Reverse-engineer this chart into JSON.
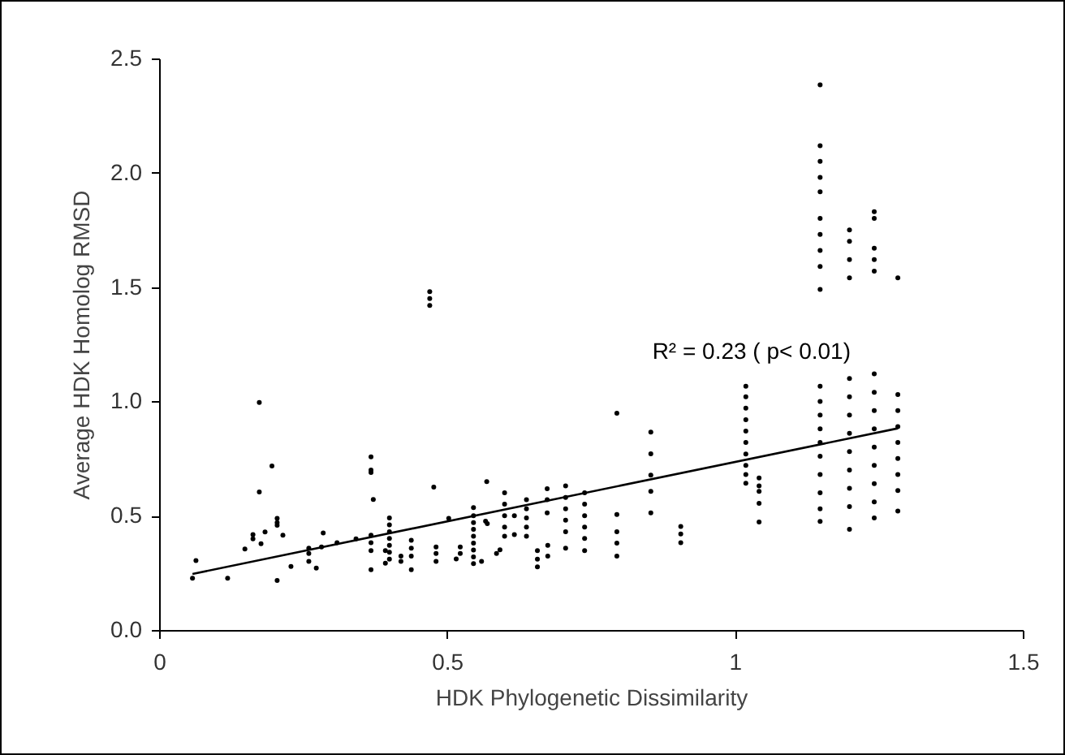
{
  "chart_data": {
    "type": "scatter",
    "xlabel": "HDK Phylogenetic Dissimilarity",
    "ylabel": "Average HDK Homolog RMSD",
    "annotations": [
      "R² = 0.23 ( p< 0.01)"
    ],
    "xlim": [
      0,
      1.5
    ],
    "xticks": [
      0,
      0.5,
      1,
      1.5
    ],
    "ylim": [
      0,
      2.5
    ],
    "yticks": [
      {
        "value": 0,
        "label": "0.0"
      },
      {
        "value": 0.5,
        "label": "0.5"
      },
      {
        "value": 1,
        "label": "1.0"
      },
      {
        "value": 1.5,
        "label": "1.5"
      },
      {
        "value": 2,
        "label": "2.0"
      },
      {
        "value": 2.5,
        "label": "2.5"
      }
    ],
    "grid": false,
    "series": [
      {
        "color": "#000000",
        "marker": "circle",
        "x": [
          0.058,
          0.064,
          0.119,
          0.149,
          0.163,
          0.163,
          0.174,
          0.174,
          0.177,
          0.184,
          0.196,
          0.205,
          0.205,
          0.205,
          0.205,
          0.215,
          0.229,
          0.26,
          0.26,
          0.26,
          0.273,
          0.285,
          0.282,
          0.309,
          0.342,
          0.368,
          0.368,
          0.368,
          0.372,
          0.368,
          0.368,
          0.368,
          0.368,
          0.393,
          0.393,
          0.4,
          0.4,
          0.4,
          0.4,
          0.4,
          0.4,
          0.4,
          0.42,
          0.42,
          0.438,
          0.438,
          0.438,
          0.438,
          0.47,
          0.47,
          0.47,
          0.477,
          0.481,
          0.481,
          0.481,
          0.503,
          0.516,
          0.523,
          0.523,
          0.546,
          0.546,
          0.546,
          0.546,
          0.546,
          0.546,
          0.546,
          0.546,
          0.546,
          0.56,
          0.567,
          0.569,
          0.57,
          0.586,
          0.592,
          0.6,
          0.6,
          0.6,
          0.6,
          0.6,
          0.617,
          0.617,
          0.638,
          0.638,
          0.638,
          0.638,
          0.638,
          0.657,
          0.657,
          0.657,
          0.675,
          0.675,
          0.674,
          0.674,
          0.674,
          0.706,
          0.706,
          0.706,
          0.706,
          0.706,
          0.706,
          0.739,
          0.739,
          0.739,
          0.739,
          0.739,
          0.739,
          0.795,
          0.795,
          0.795,
          0.795,
          0.795,
          0.854,
          0.854,
          0.854,
          0.854,
          0.854,
          0.906,
          0.906,
          0.906,
          1.019,
          1.019,
          1.019,
          1.019,
          1.019,
          1.019,
          1.019,
          1.019,
          1.019,
          1.019,
          1.042,
          1.042,
          1.042,
          1.042,
          1.042,
          1.148,
          1.148,
          1.148,
          1.148,
          1.148,
          1.148,
          1.148,
          1.148,
          1.148,
          1.148,
          1.148,
          1.148,
          1.148,
          1.148,
          1.148,
          1.148,
          1.148,
          1.148,
          1.148,
          1.148,
          1.199,
          1.199,
          1.199,
          1.199,
          1.199,
          1.199,
          1.199,
          1.199,
          1.199,
          1.199,
          1.199,
          1.199,
          1.199,
          1.242,
          1.242,
          1.242,
          1.242,
          1.242,
          1.242,
          1.242,
          1.242,
          1.242,
          1.242,
          1.242,
          1.242,
          1.242,
          1.242,
          1.283,
          1.283,
          1.283,
          1.283,
          1.283,
          1.283,
          1.283,
          1.283,
          1.283
        ],
        "values": [
          0.226,
          0.304,
          0.226,
          0.354,
          0.417,
          0.399,
          0.995,
          0.604,
          0.377,
          0.429,
          0.717,
          0.488,
          0.47,
          0.458,
          0.217,
          0.415,
          0.278,
          0.358,
          0.335,
          0.3,
          0.271,
          0.424,
          0.363,
          0.382,
          0.399,
          0.757,
          0.7,
          0.689,
          0.571,
          0.415,
          0.382,
          0.347,
          0.264,
          0.347,
          0.292,
          0.49,
          0.46,
          0.43,
          0.4,
          0.37,
          0.34,
          0.31,
          0.323,
          0.3,
          0.392,
          0.358,
          0.323,
          0.264,
          1.42,
          1.45,
          1.48,
          0.625,
          0.363,
          0.335,
          0.3,
          0.488,
          0.311,
          0.363,
          0.335,
          0.535,
          0.5,
          0.47,
          0.44,
          0.41,
          0.38,
          0.35,
          0.32,
          0.29,
          0.3,
          0.476,
          0.649,
          0.465,
          0.335,
          0.351,
          0.6,
          0.55,
          0.5,
          0.45,
          0.41,
          0.5,
          0.417,
          0.57,
          0.53,
          0.49,
          0.45,
          0.41,
          0.347,
          0.31,
          0.276,
          0.37,
          0.323,
          0.618,
          0.57,
          0.512,
          0.63,
          0.58,
          0.53,
          0.48,
          0.43,
          0.358,
          0.6,
          0.55,
          0.5,
          0.45,
          0.4,
          0.347,
          0.948,
          0.505,
          0.43,
          0.38,
          0.323,
          0.866,
          0.771,
          0.677,
          0.606,
          0.512,
          0.453,
          0.42,
          0.382,
          1.066,
          1.02,
          0.97,
          0.92,
          0.87,
          0.82,
          0.77,
          0.72,
          0.68,
          0.642,
          0.665,
          0.63,
          0.606,
          0.554,
          0.472,
          2.385,
          2.118,
          2.05,
          1.98,
          1.917,
          1.8,
          1.73,
          1.66,
          1.59,
          1.49,
          1.066,
          1.0,
          0.94,
          0.88,
          0.82,
          0.76,
          0.68,
          0.6,
          0.53,
          0.475,
          1.75,
          1.7,
          1.62,
          1.54,
          1.1,
          1.02,
          0.94,
          0.86,
          0.78,
          0.7,
          0.62,
          0.54,
          0.44,
          1.83,
          1.8,
          1.67,
          1.62,
          1.57,
          1.12,
          1.04,
          0.96,
          0.88,
          0.8,
          0.72,
          0.64,
          0.56,
          0.49,
          1.54,
          1.03,
          0.96,
          0.89,
          0.82,
          0.75,
          0.68,
          0.61,
          0.52
        ]
      },
      {
        "type": "line",
        "color": "#000000",
        "x": [
          0.058,
          1.283
        ],
        "values": [
          0.245,
          0.882
        ]
      }
    ]
  }
}
